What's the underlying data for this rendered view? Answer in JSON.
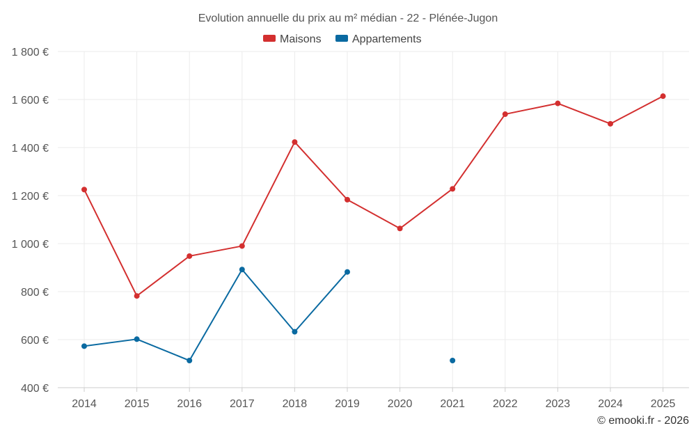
{
  "chart_data": {
    "type": "line",
    "title": "Evolution annuelle du prix au m² médian - 22 - Plénée-Jugon",
    "categories": [
      "2014",
      "2015",
      "2016",
      "2017",
      "2018",
      "2019",
      "2020",
      "2021",
      "2022",
      "2023",
      "2024",
      "2025"
    ],
    "ylim": [
      400,
      1800
    ],
    "yticks": [
      400,
      600,
      800,
      1000,
      1200,
      1400,
      1600,
      1800
    ],
    "ytick_labels": [
      "400 €",
      "600 €",
      "800 €",
      "1 000 €",
      "1 200 €",
      "1 400 €",
      "1 600 €",
      "1 800 €"
    ],
    "grid": true,
    "legend_position": "top-center",
    "series": [
      {
        "name": "Maisons",
        "color": "#d32f2f",
        "values": [
          1225,
          782,
          948,
          990,
          1423,
          1183,
          1063,
          1228,
          1539,
          1584,
          1499,
          1614
        ]
      },
      {
        "name": "Appartements",
        "color": "#0a6aa1",
        "values": [
          573,
          602,
          513,
          892,
          633,
          882,
          null,
          513,
          null,
          null,
          null,
          null
        ]
      }
    ],
    "credit": "© emooki.fr - 2026"
  }
}
